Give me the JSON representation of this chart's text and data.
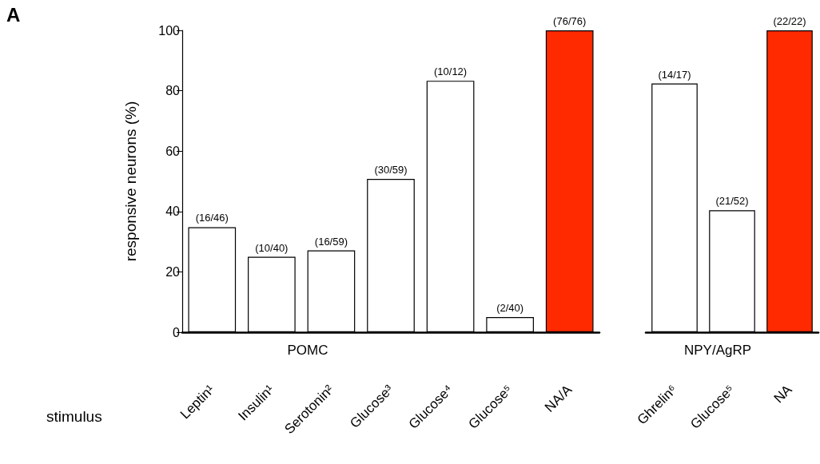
{
  "chart_data": [
    {
      "type": "bar",
      "xlabel": "POMC",
      "ylabel": "responsive neurons (%)",
      "annotations": [
        "A",
        "stimulus"
      ],
      "categories": [
        "Leptin¹",
        "Insulin¹",
        "Serotonin²",
        "Glucose³",
        "Glucose⁴",
        "Glucose⁵",
        "NA/A"
      ],
      "values": [
        34.8,
        25,
        27.1,
        50.8,
        83.3,
        5,
        100
      ],
      "colors": [
        "#ffffff",
        "#ffffff",
        "#ffffff",
        "#ffffff",
        "#ffffff",
        "#ffffff",
        "#ff2a00"
      ],
      "value_labels": [
        "(16/46)",
        "(10/40)",
        "(16/59)",
        "(30/59)",
        "(10/12)",
        "(2/40)",
        "(76/76)"
      ],
      "ylim": [
        0,
        100
      ],
      "yticks": [
        0,
        20,
        40,
        60,
        80,
        100
      ],
      "grid": false
    },
    {
      "type": "bar",
      "xlabel": "NPY/AgRP",
      "categories": [
        "Ghrelin⁶",
        "Glucose⁵",
        "NA"
      ],
      "values": [
        82.4,
        40.4,
        100
      ],
      "colors": [
        "#ffffff",
        "#ffffff",
        "#ff2a00"
      ],
      "value_labels": [
        "(14/17)",
        "(21/52)",
        "(22/22)"
      ],
      "ylim": [
        0,
        100
      ],
      "yticks": [
        0,
        20,
        40,
        60,
        80,
        100
      ],
      "tick_labels": "x",
      "grid": false
    }
  ]
}
